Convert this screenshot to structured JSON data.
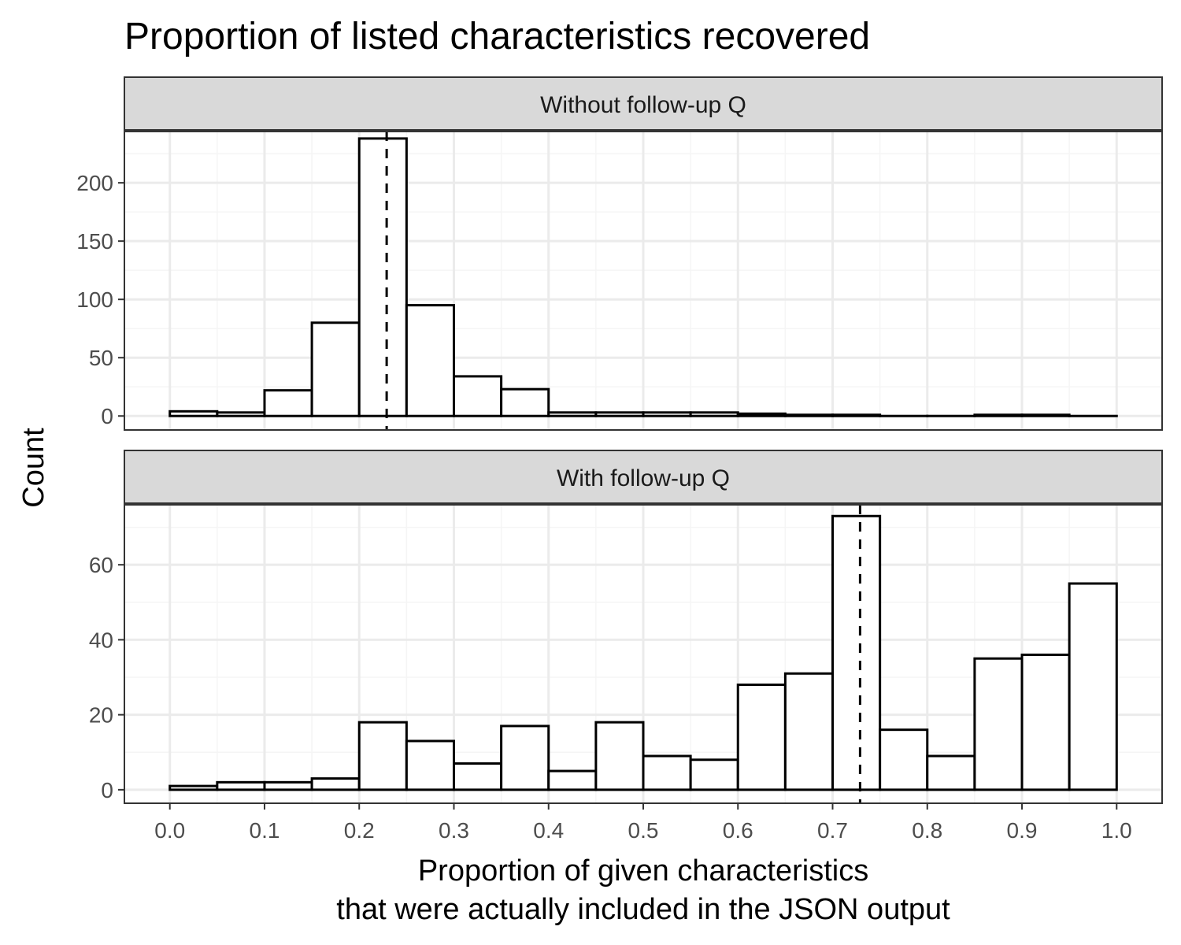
{
  "chart_data": {
    "type": "bar",
    "subtype": "faceted-histogram",
    "title": "Proportion of listed characteristics recovered",
    "xlabel_lines": [
      "Proportion of given characteristics",
      "that were actually included in the JSON output"
    ],
    "ylabel": "Count",
    "bin_width": 0.05,
    "x_bin_starts": [
      0.0,
      0.05,
      0.1,
      0.15,
      0.2,
      0.25,
      0.3,
      0.35,
      0.4,
      0.45,
      0.5,
      0.55,
      0.6,
      0.65,
      0.7,
      0.75,
      0.8,
      0.85,
      0.9,
      0.95
    ],
    "xlim": [
      -0.048,
      1.048
    ],
    "x_ticks": [
      0.0,
      0.1,
      0.2,
      0.3,
      0.4,
      0.5,
      0.6,
      0.7,
      0.8,
      0.9,
      1.0
    ],
    "x_tick_labels": [
      "0.0",
      "0.1",
      "0.2",
      "0.3",
      "0.4",
      "0.5",
      "0.6",
      "0.7",
      "0.8",
      "0.9",
      "1.0"
    ],
    "grid": true,
    "legend": "none",
    "panels": [
      {
        "strip_label": "Without follow-up Q",
        "values": [
          4,
          3,
          22,
          80,
          238,
          95,
          34,
          23,
          3,
          3,
          3,
          3,
          2,
          1,
          1,
          0,
          0,
          1,
          1,
          0
        ],
        "mean_line_x": 0.229,
        "ylim": [
          -12,
          244
        ],
        "y_ticks": [
          0,
          50,
          100,
          150,
          200
        ],
        "y_tick_labels": [
          "0",
          "50",
          "100",
          "150",
          "200"
        ]
      },
      {
        "strip_label": "With follow-up Q",
        "values": [
          1,
          2,
          2,
          3,
          18,
          13,
          7,
          17,
          5,
          18,
          9,
          8,
          28,
          31,
          73,
          16,
          9,
          35,
          36,
          55
        ],
        "mean_line_x": 0.729,
        "ylim": [
          -3.6,
          76
        ],
        "y_ticks": [
          0,
          20,
          40,
          60
        ],
        "y_tick_labels": [
          "0",
          "20",
          "40",
          "60"
        ]
      }
    ],
    "colors": {
      "bar_fill": "#ffffff",
      "bar_stroke": "#000000",
      "strip_fill": "#d9d9d9",
      "panel_border": "#333333",
      "grid_major": "#ebebeb",
      "grid_minor": "#f5f5f5",
      "mean_line": "#000000"
    }
  }
}
